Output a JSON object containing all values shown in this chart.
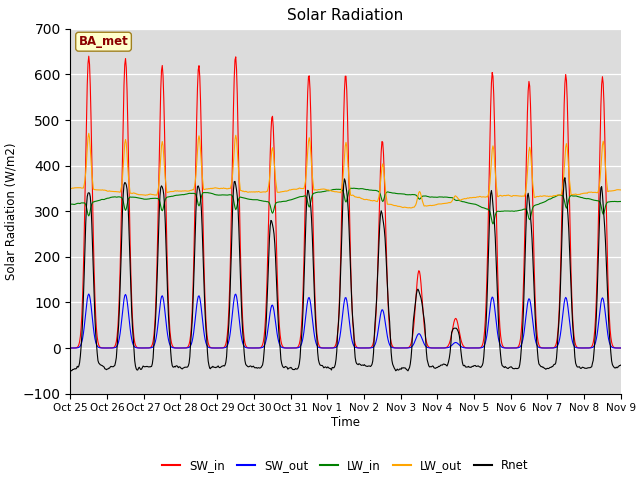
{
  "title": "Solar Radiation",
  "ylabel": "Solar Radiation (W/m2)",
  "xlabel": "Time",
  "ylim": [
    -100,
    700
  ],
  "annotation": "BA_met",
  "legend_entries": [
    "SW_in",
    "SW_out",
    "LW_in",
    "LW_out",
    "Rnet"
  ],
  "line_colors": [
    "red",
    "blue",
    "green",
    "orange",
    "black"
  ],
  "bg_color": "#dcdcdc",
  "fig_color": "#ffffff",
  "n_days": 15,
  "tick_labels": [
    "Oct 25",
    "Oct 26",
    "Oct 27",
    "Oct 28",
    "Oct 29",
    "Oct 30",
    "Oct 31",
    "Nov 1",
    "Nov 2",
    "Nov 3",
    "Nov 4",
    "Nov 5",
    "Nov 6",
    "Nov 7",
    "Nov 8",
    "Nov 9"
  ],
  "sw_in_peaks": [
    640,
    635,
    620,
    620,
    640,
    510,
    600,
    600,
    455,
    170,
    65,
    605,
    585,
    600,
    595
  ],
  "sw_out_ratio": 0.185,
  "lw_in_base": 315,
  "lw_out_base": 350,
  "lw_out_peak_boost": 120,
  "rnet_night": -42
}
